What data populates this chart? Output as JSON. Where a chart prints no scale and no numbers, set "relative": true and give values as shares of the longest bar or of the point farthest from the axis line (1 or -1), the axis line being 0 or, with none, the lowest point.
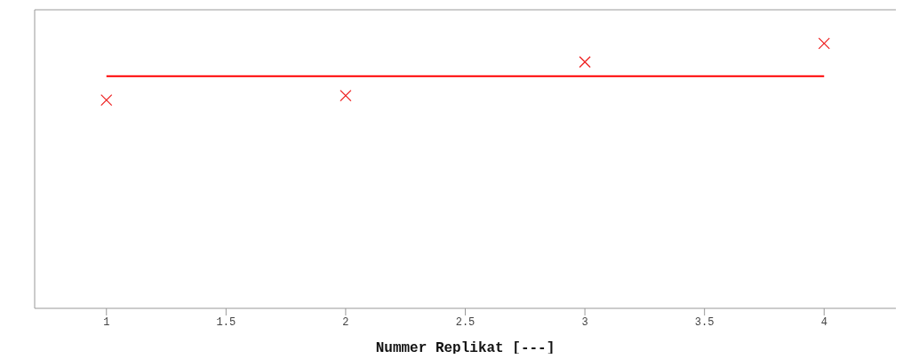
{
  "chart_data": {
    "type": "scatter",
    "xlabel": "Nummer Replikat [---]",
    "relative": true,
    "xlim": [
      0.7,
      4.3
    ],
    "xticks": [
      1,
      1.5,
      2,
      2.5,
      3,
      3.5,
      4
    ],
    "marker": "cross",
    "grid": false,
    "legend": false,
    "series": [
      {
        "color": "#ee2222",
        "x": [
          1,
          2,
          3,
          4
        ],
        "values": [
          0.786,
          0.803,
          0.93,
          1
        ]
      },
      {
        "type": "line",
        "color": "#ff0000",
        "x": [
          1,
          4
        ],
        "values": [
          0.876,
          0.876
        ],
        "marker": "none",
        "line_style": "solid"
      }
    ]
  }
}
